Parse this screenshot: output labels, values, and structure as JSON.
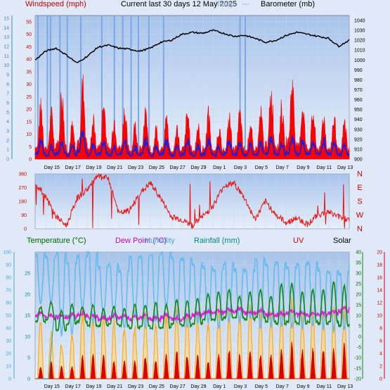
{
  "header": {
    "windspeed_label": "Windspeed (mph)",
    "title": "Current last 30 days 12 May 2025",
    "temp_label_overlap": "Temp.",
    "dashes": "---",
    "barometer_label": "Barometer (mb)"
  },
  "lower_header": {
    "temperature_label": "Temperature (°C)",
    "dewpoint_label": "Dew Point (°C)",
    "humidity_label": "Humidity",
    "rainfall_label": "Rainfall (mm)",
    "uv_label": "UV",
    "solar_label": "Solar"
  },
  "colors": {
    "gust": "#ff0000",
    "wind": "#1e1edc",
    "barometer": "#000000",
    "direction": "#ee1111",
    "temperature": "#118811",
    "dewpoint": "#ee11ee",
    "humidity": "#66bbee",
    "rainfall": "#33aaaa",
    "uv": "#dd0000",
    "solar": "#ffaa22",
    "windspeed_label": "#cc0000",
    "temp_label": "#006600",
    "dew_label": "#cc00cc",
    "hum_label": "#44aadd",
    "rain_label": "#008888",
    "uv_label": "#cc0000"
  },
  "x_axis": {
    "ticks": [
      "Day 15",
      "Day 17",
      "Day 19",
      "Day 21",
      "Day 23",
      "Day 25",
      "Day 27",
      "Day 29",
      "Day 1",
      "Day 3",
      "Day 5",
      "Day 7",
      "Day 9",
      "Day 11",
      "Day 13"
    ]
  },
  "chart_data": [
    {
      "type": "line",
      "name": "wind-barometer",
      "days": 30,
      "y_left_mph_ticks": [
        "0",
        "5",
        "10",
        "15",
        "20",
        "25",
        "30",
        "35",
        "40",
        "45",
        "50",
        "55"
      ],
      "y_left_mph_lim": [
        0,
        57.5
      ],
      "y_far_left_ticks": [
        "0",
        "1",
        "2",
        "3",
        "4",
        "5",
        "6",
        "7",
        "8",
        "9",
        "10",
        "11",
        "12",
        "13",
        "14",
        "15"
      ],
      "y_right_mb_ticks": [
        "900",
        "910",
        "920",
        "930",
        "940",
        "950",
        "960",
        "970",
        "980",
        "990",
        "1000",
        "1010",
        "1020",
        "1030",
        "1040"
      ],
      "y_right_mb_lim": [
        900,
        1045
      ],
      "barometer": [
        1000,
        1009,
        1012,
        1005,
        997,
        1004,
        1013,
        1015,
        1012,
        1011,
        1009,
        1012,
        1018,
        1020,
        1026,
        1028,
        1027,
        1030,
        1027,
        1024,
        1025,
        1022,
        1018,
        1020,
        1025,
        1028,
        1026,
        1024,
        1022,
        1014,
        1020
      ],
      "daily_gust_peak": [
        25,
        22,
        32,
        16,
        36,
        19,
        27,
        20,
        24,
        17,
        22,
        15,
        20,
        15,
        22,
        16,
        22,
        15,
        20,
        22,
        17,
        22,
        32,
        25,
        37,
        26,
        22,
        21,
        20,
        18,
        22
      ],
      "daily_wind_peak": [
        9,
        6,
        9,
        6,
        14,
        7,
        9,
        6,
        9,
        6,
        9,
        6,
        9,
        6,
        9,
        6,
        9,
        6,
        9,
        8,
        7,
        8,
        10,
        8,
        11,
        9,
        9,
        9,
        9,
        7,
        8
      ],
      "wind_spikes_days": [
        0.2,
        1.1,
        1.4,
        2.3,
        3.0,
        4.3,
        6.3,
        7.5,
        8.3,
        9.1,
        9.8,
        10.8,
        12.2,
        19.5,
        20.0
      ]
    },
    {
      "type": "line",
      "name": "wind-direction",
      "y_ticks": [
        "0",
        "90",
        "180",
        "270",
        "360"
      ],
      "y_right_labels": [
        "N",
        "W",
        "S",
        "E",
        "N"
      ],
      "y_lim": [
        0,
        360
      ],
      "direction": [
        300,
        210,
        80,
        20,
        200,
        260,
        345,
        330,
        100,
        120,
        230,
        300,
        200,
        80,
        60,
        20,
        80,
        150,
        280,
        300,
        200,
        60,
        180,
        90,
        40,
        70,
        30,
        90,
        110,
        80,
        60
      ]
    },
    {
      "type": "line",
      "name": "temperature-dewpoint-humidity-rain-uv-solar",
      "y_left_hum_ticks": [
        "0",
        "10",
        "20",
        "30",
        "40",
        "50",
        "60",
        "70",
        "80",
        "90",
        "100"
      ],
      "y_mid_ticks": [
        "0",
        "5",
        "10",
        "15",
        "20",
        "25"
      ],
      "y_right_temp_ticks": [
        "-20",
        "-15",
        "-10",
        "-5",
        "0",
        "5",
        "10",
        "15",
        "20",
        "25",
        "30",
        "35",
        "40"
      ],
      "y_far_right_ticks": [
        "0",
        "2",
        "4",
        "6",
        "8",
        "10",
        "12",
        "14",
        "16",
        "18",
        "20"
      ],
      "temp_high": [
        14,
        16,
        12,
        15,
        14,
        15,
        13,
        14,
        13,
        15,
        15,
        16,
        15,
        17,
        17,
        18,
        20,
        21,
        22,
        19,
        21,
        22,
        19,
        25,
        25,
        21,
        22,
        22,
        26,
        24,
        22
      ],
      "temp_low": [
        7,
        8,
        3,
        6,
        7,
        5,
        5,
        6,
        5,
        4,
        5,
        4,
        4,
        6,
        5,
        6,
        8,
        8,
        9,
        9,
        8,
        9,
        7,
        6,
        7,
        6,
        7,
        6,
        7,
        5,
        6
      ],
      "dewpoint": [
        10,
        9,
        9,
        9,
        10,
        9,
        8,
        9,
        9,
        8,
        9,
        8,
        9,
        8,
        9,
        10,
        11,
        11,
        12,
        12,
        11,
        11,
        10,
        10,
        11,
        10,
        10,
        10,
        11,
        12,
        13
      ],
      "humidity": [
        98,
        96,
        99,
        91,
        97,
        99,
        88,
        90,
        85,
        96,
        96,
        98,
        99,
        95,
        95,
        90,
        88,
        86,
        91,
        86,
        85,
        95,
        90,
        92,
        88,
        90,
        92,
        86,
        84,
        83,
        90
      ],
      "humidity_min": [
        60,
        60,
        35,
        35,
        55,
        45,
        50,
        48,
        40,
        50,
        40,
        45,
        55,
        45,
        40,
        45,
        45,
        40,
        45,
        45,
        48,
        40,
        42,
        42,
        40,
        40,
        42,
        40,
        38,
        40,
        42
      ],
      "uv_peak": [
        2,
        3,
        2,
        2,
        4,
        4,
        4,
        3,
        3,
        3,
        4,
        3,
        4,
        5,
        4,
        4,
        3,
        4,
        5,
        4,
        5,
        4,
        4,
        5,
        6,
        5,
        5,
        5,
        5,
        6,
        5
      ],
      "solar_peak": [
        50,
        40,
        30,
        40,
        60,
        55,
        55,
        50,
        45,
        45,
        55,
        45,
        55,
        62,
        60,
        55,
        50,
        58,
        60,
        55,
        60,
        55,
        55,
        60,
        65,
        55,
        60,
        58,
        60,
        62,
        60
      ],
      "rain_cumulative_segment": [
        0,
        0,
        0,
        15,
        15,
        15,
        15,
        15
      ]
    }
  ]
}
